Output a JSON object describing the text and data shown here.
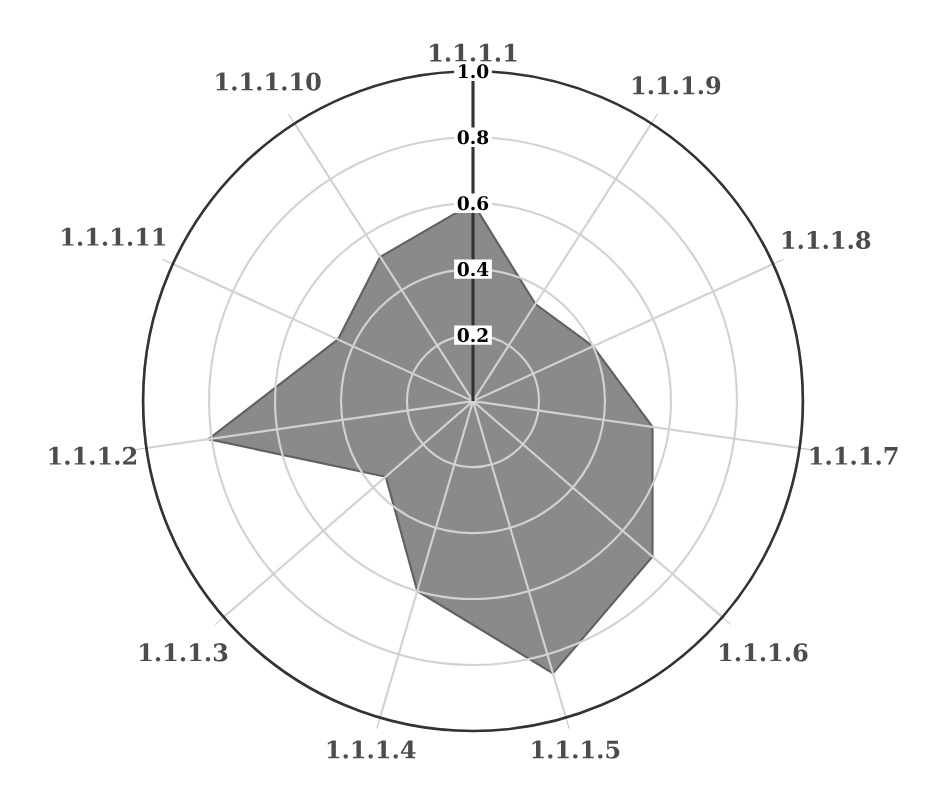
{
  "chart_data": {
    "type": "radar",
    "categories": [
      "1.1.1.1",
      "1.1.1.9",
      "1.1.1.8",
      "1.1.1.7",
      "1.1.1.6",
      "1.1.1.5",
      "1.1.1.4",
      "1.1.1.3",
      "1.1.1.2",
      "1.1.1.11",
      "1.1.1.10"
    ],
    "series": [
      {
        "color": "#8a8a8a",
        "values": [
          0.6,
          0.35,
          0.4,
          0.55,
          0.72,
          0.86,
          0.6,
          0.35,
          0.81,
          0.45,
          0.52
        ]
      }
    ],
    "ylim": [
      0,
      1
    ],
    "yticks": [
      0.2,
      0.4,
      0.6,
      0.8,
      {
        "value": 1,
        "label": "1.0"
      }
    ],
    "grid": true
  }
}
